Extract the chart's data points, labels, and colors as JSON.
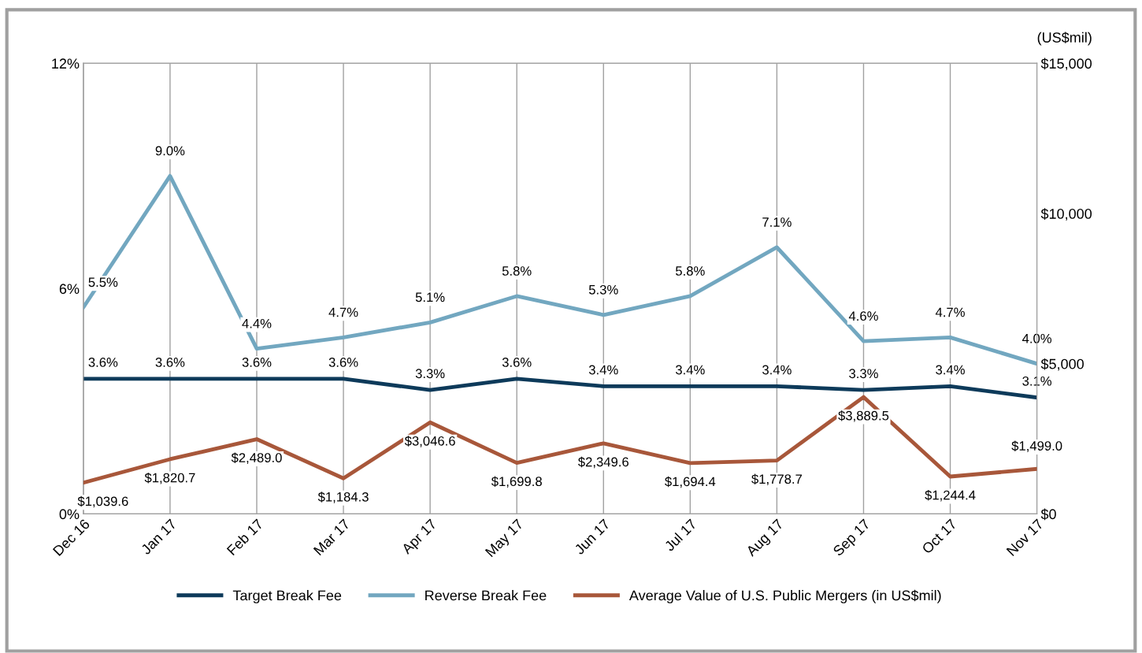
{
  "chart_data": {
    "type": "line",
    "categories": [
      "Dec 16",
      "Jan 17",
      "Feb 17",
      "Mar 17",
      "Apr 17",
      "May 17",
      "Jun 17",
      "Jul 17",
      "Aug 17",
      "Sep 17",
      "Oct 17",
      "Nov 17"
    ],
    "series": [
      {
        "name": "Target Break Fee",
        "color": "#0d3a5a",
        "values": [
          3.6,
          3.6,
          3.6,
          3.6,
          3.3,
          3.6,
          3.4,
          3.4,
          3.4,
          3.3,
          3.4,
          3.1
        ],
        "value_labels": [
          "3.6%",
          "3.6%",
          "3.6%",
          "3.6%",
          "3.3%",
          "3.6%",
          "3.4%",
          "3.4%",
          "3.4%",
          "3.3%",
          "3.4%",
          "3.1%"
        ]
      },
      {
        "name": "Reverse Break Fee",
        "color": "#72a7c0",
        "values": [
          5.5,
          9.0,
          4.4,
          4.7,
          5.1,
          5.8,
          5.3,
          5.8,
          7.1,
          4.6,
          4.7,
          4.0
        ],
        "value_labels": [
          "5.5%",
          "9.0%",
          "4.4%",
          "4.7%",
          "5.1%",
          "5.8%",
          "5.3%",
          "5.8%",
          "7.1%",
          "4.6%",
          "4.7%",
          "4.0%"
        ]
      },
      {
        "name": "Average Value of U.S. Public Mergers (in US$mil)",
        "color": "#a8573a",
        "axis": "y2",
        "values": [
          1039.6,
          1820.7,
          2489.0,
          1184.3,
          3046.6,
          1699.8,
          2349.6,
          1694.4,
          1778.7,
          3889.5,
          1244.4,
          1499.0
        ],
        "value_labels": [
          "$1,039.6",
          "$1,820.7",
          "$2,489.0",
          "$1,184.3",
          "$3,046.6",
          "$1,699.8",
          "$2,349.6",
          "$1,694.4",
          "$1,778.7",
          "$3,889.5",
          "$1,244.4",
          "$1,499.0"
        ]
      }
    ],
    "ylim": [
      0,
      12
    ],
    "yticks": [
      {
        "value": 0,
        "label": "0%"
      },
      {
        "value": 6,
        "label": "6%"
      },
      {
        "value": 12,
        "label": "12%"
      }
    ],
    "y2lim": [
      0,
      15000
    ],
    "y2ticks": [
      {
        "value": 0,
        "label": "$0"
      },
      {
        "value": 5000,
        "label": "$5,000"
      },
      {
        "value": 10000,
        "label": "$10,000"
      },
      {
        "value": 15000,
        "label": "$15,000"
      }
    ],
    "y2label": "(US$mil)",
    "grid": "x",
    "legend": "bottom",
    "marker": "none",
    "line_style": "solid"
  }
}
